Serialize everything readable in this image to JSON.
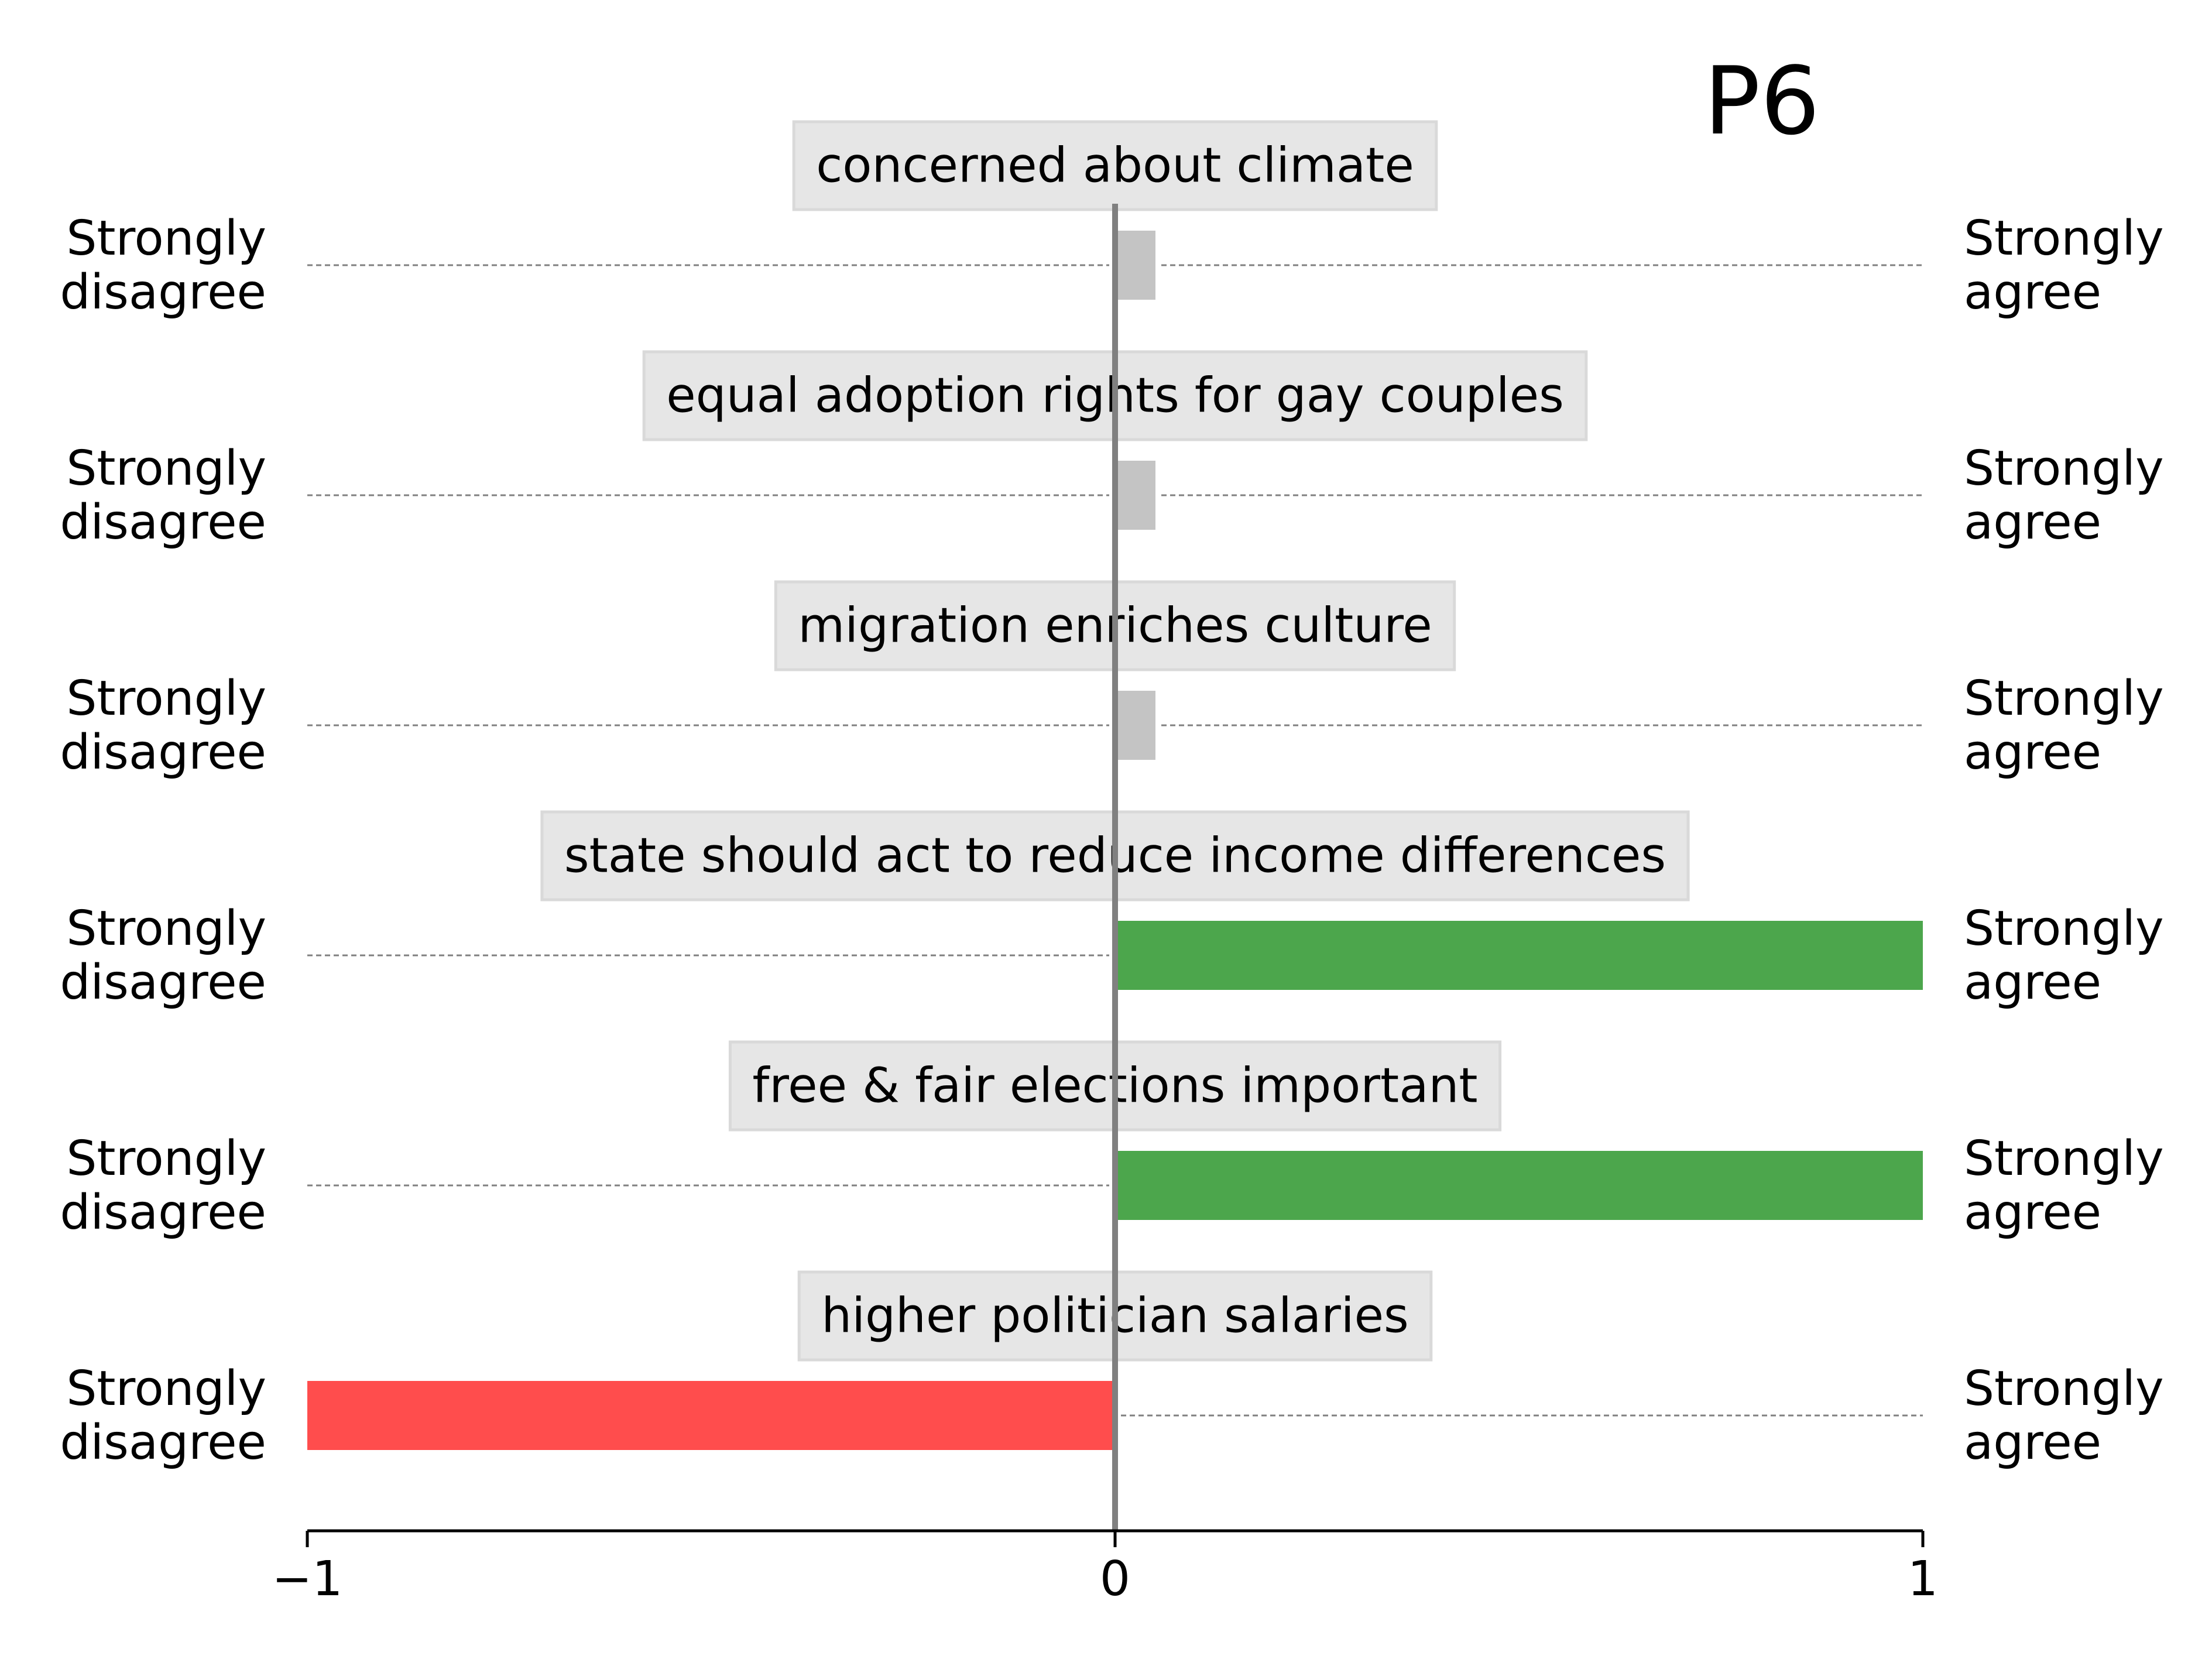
{
  "chart_data": {
    "type": "bar",
    "orientation": "horizontal",
    "title": "P6",
    "xlim": [
      -1,
      1
    ],
    "x_ticks": [
      {
        "value": -1,
        "label": "−1"
      },
      {
        "value": 0,
        "label": "0"
      },
      {
        "value": 1,
        "label": "1"
      }
    ],
    "left_label": [
      "Strongly",
      "disagree"
    ],
    "right_label": [
      "Strongly",
      "agree"
    ],
    "categories": [
      "concerned about climate",
      "equal adoption rights for gay couples",
      "migration enriches culture",
      "state should act to reduce income differences",
      "free & fair elections important",
      "higher politician salaries"
    ],
    "values": [
      0.05,
      0.05,
      0.05,
      1,
      1,
      -1
    ],
    "bar_states": [
      "neutral",
      "neutral",
      "neutral",
      "agree",
      "agree",
      "disagree"
    ],
    "colors": {
      "agree": "#4ca64c",
      "disagree": "#ff4d4d",
      "neutral": "#c4c4c4",
      "label_box": "#e6e6e6",
      "center_line": "#808080",
      "guide_line": "#808080"
    },
    "grid": false
  }
}
